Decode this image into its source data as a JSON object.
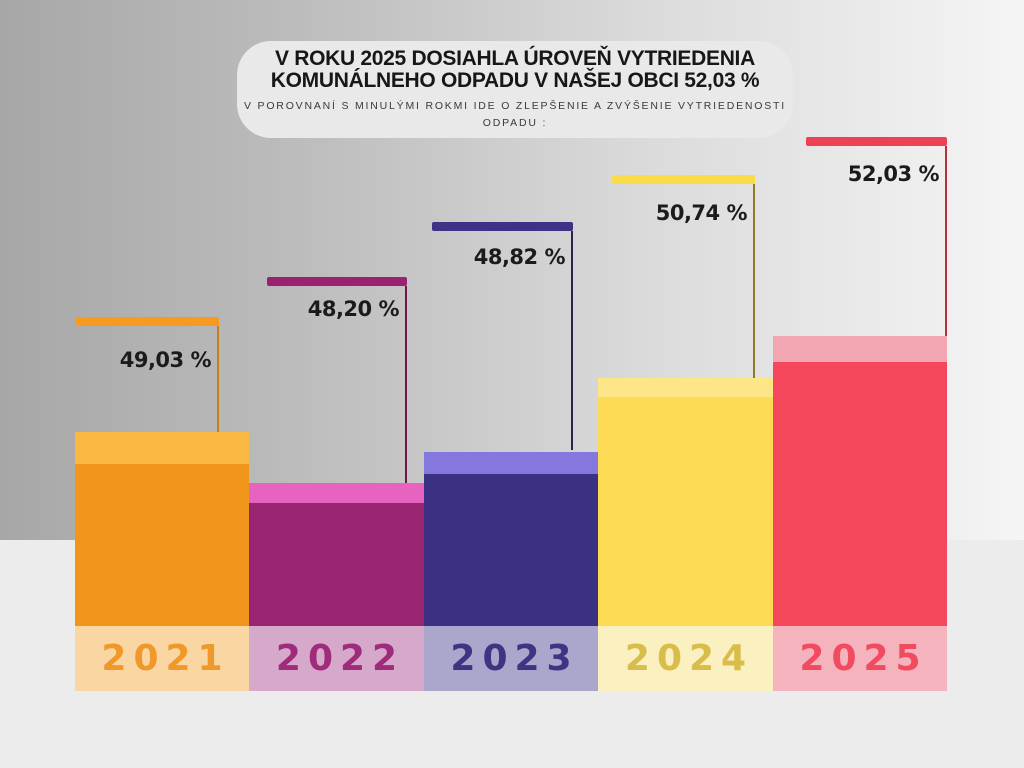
{
  "header": {
    "title_line1": "V ROKU 2025 DOSIAHLA ÚROVEŇ VYTRIEDENIA",
    "title_line2": "KOMUNÁLNEHO ODPADU V NAŠEJ OBCI 52,03 %",
    "subtitle": "V POROVNANÍ S MINULÝMI ROKMI IDE O ZLEPŠENIE A ZVÝŠENIE VYTRIEDENOSTI ODPADU :"
  },
  "background": {
    "gradient_left": "#a7a7a7",
    "gradient_right": "#f5f5f5",
    "footer_band": "#edecec",
    "title_card": "#e9e9e9"
  },
  "chart_data": {
    "type": "bar",
    "title": "V ROKU 2025 DOSIAHLA ÚROVEŇ VYTRIEDENIA KOMUNÁLNEHO ODPADU V NAŠEJ OBCI 52,03 %",
    "subtitle": "V POROVNANÍ S MINULÝMI ROKMI IDE O ZLEPŠENIE A ZVÝŠENIE VYTRIEDENOSTI ODPADU :",
    "xlabel": "",
    "ylabel": "",
    "axes": "none",
    "grid": false,
    "legend": "none",
    "categories": [
      "2021",
      "2022",
      "2023",
      "2024",
      "2025"
    ],
    "values": [
      49.03,
      48.2,
      48.82,
      50.74,
      52.03
    ],
    "value_labels": [
      "49,03 %",
      "48,20 %",
      "48,82 %",
      "50,74 %",
      "52,03 %"
    ],
    "bars": [
      {
        "year": "2021",
        "value": 49.03,
        "value_label": "49,03 %",
        "colors": {
          "marker": "#F59B20",
          "connector": "#C97F15",
          "cap": "#F9B841",
          "main": "#F2951D",
          "band": "#FAD6A3",
          "year_text": "#F0992B"
        }
      },
      {
        "year": "2022",
        "value": 48.2,
        "value_label": "48,20 %",
        "colors": {
          "marker": "#9B2173",
          "connector": "#6E1650",
          "cap": "#E664BF",
          "main": "#992472",
          "band": "#D6A9CA",
          "year_text": "#A02B7C"
        }
      },
      {
        "year": "2023",
        "value": 48.82,
        "value_label": "48,82 %",
        "colors": {
          "marker": "#3E3287",
          "connector": "#2B2452",
          "cap": "#8478DE",
          "main": "#3C3083",
          "band": "#ABA6CB",
          "year_text": "#3D3484"
        }
      },
      {
        "year": "2024",
        "value": 50.74,
        "value_label": "50,74 %",
        "colors": {
          "marker": "#FADC48",
          "connector": "#8F7A22",
          "cap": "#FCE687",
          "main": "#FDDB55",
          "band": "#FBF0BF",
          "year_text": "#D9BD4B"
        }
      },
      {
        "year": "2025",
        "value": 52.03,
        "value_label": "52,03 %",
        "colors": {
          "marker": "#EF4156",
          "connector": "#B52F40",
          "cap": "#F2A6B2",
          "main": "#F4475C",
          "band": "#F5B3BE",
          "year_text": "#F14B60"
        }
      }
    ]
  }
}
